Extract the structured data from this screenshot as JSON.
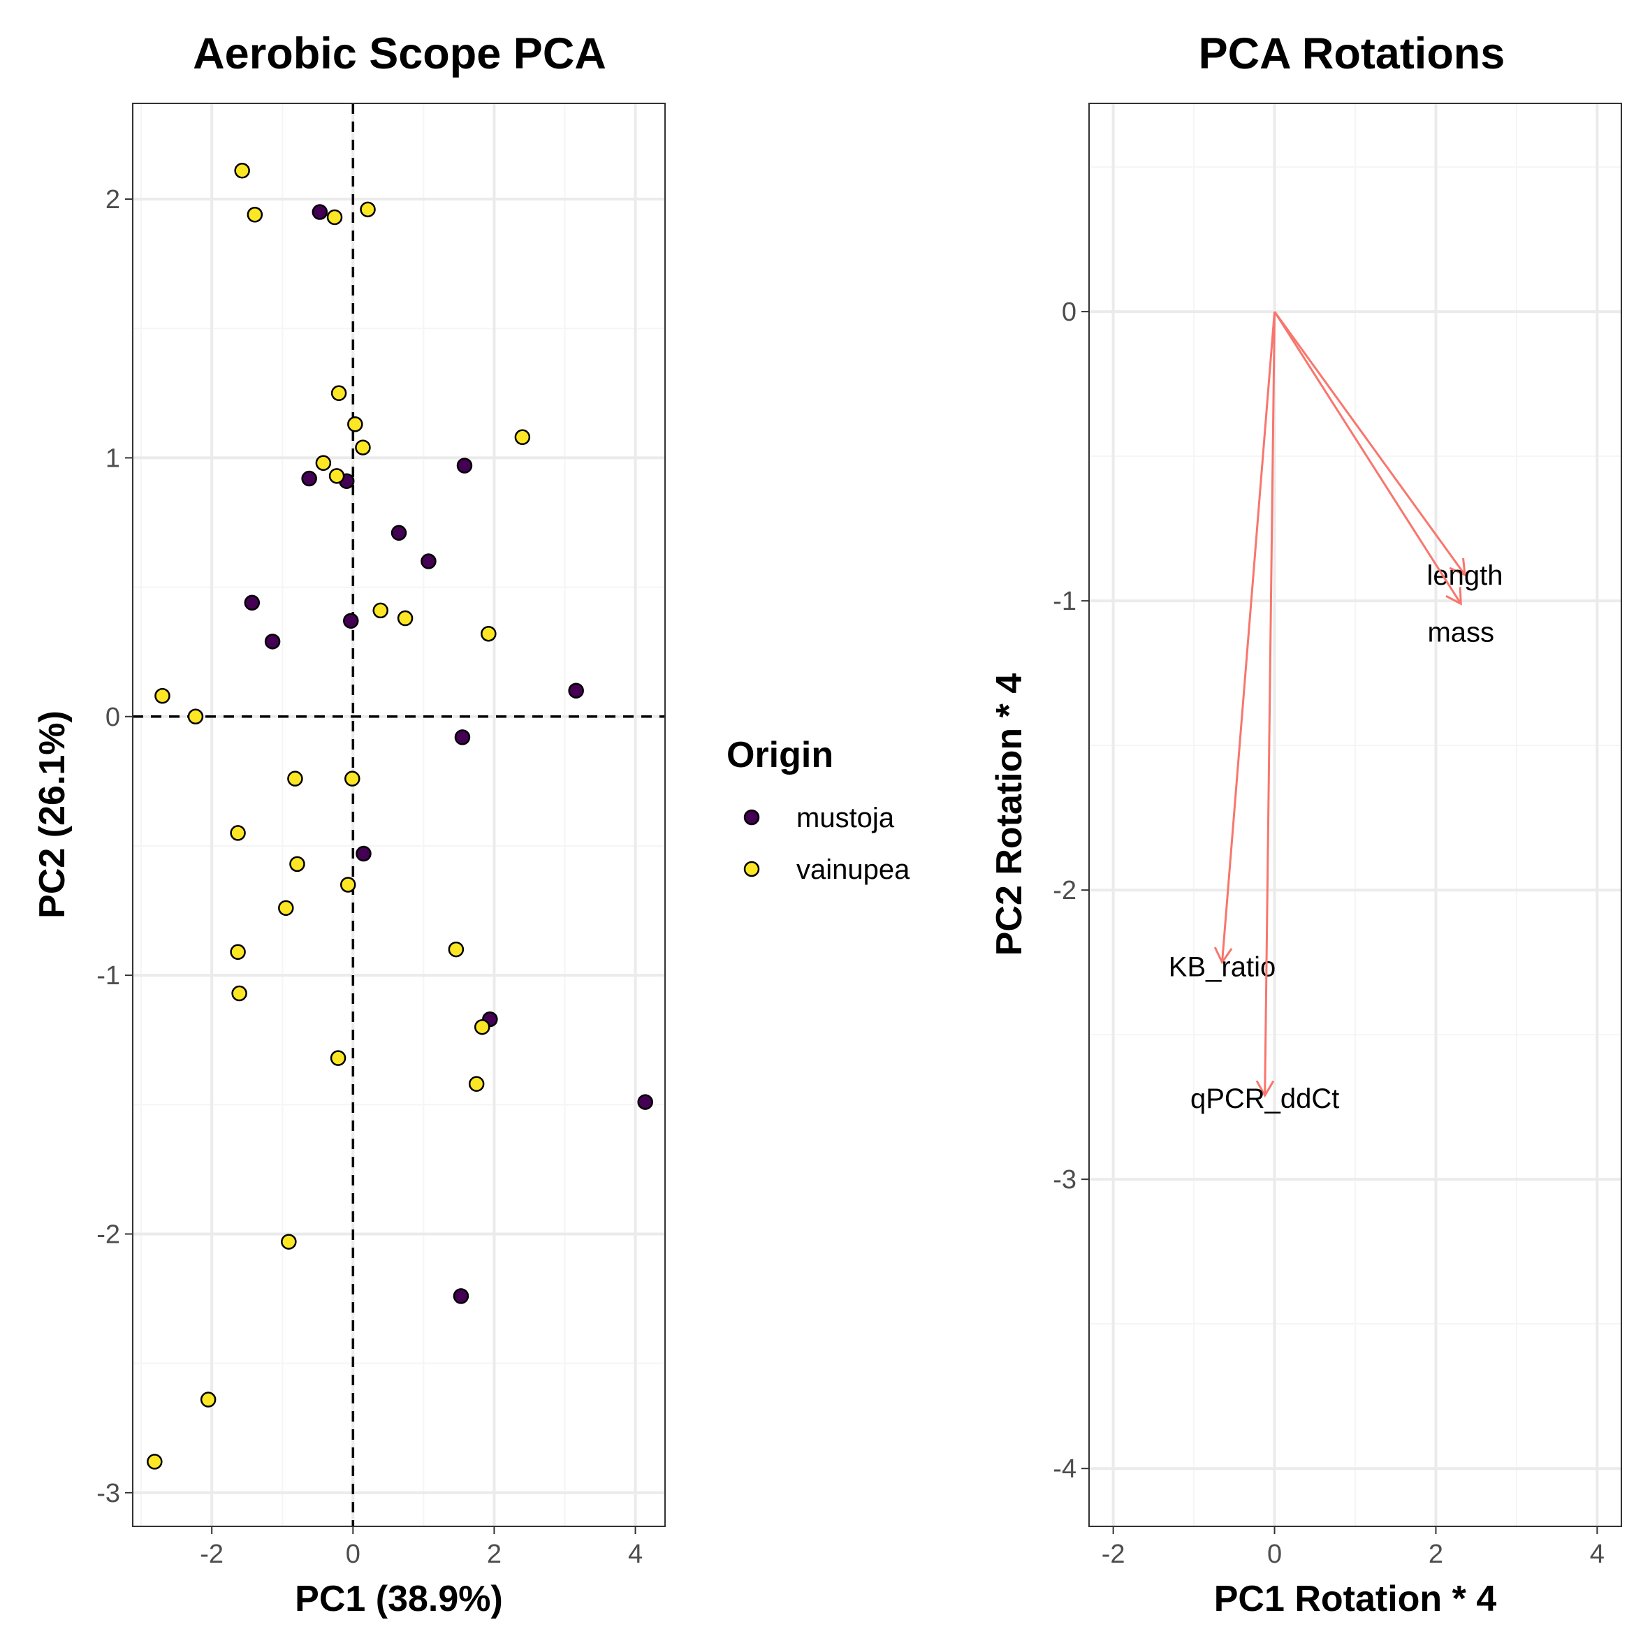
{
  "colors": {
    "mustoja": "#440154",
    "vainupea": "#FDE725",
    "arrow": "#F8766D",
    "major_grid": "#ebebeb",
    "minor_grid": "#f5f5f5",
    "panel_border": "#333333"
  },
  "legend": {
    "title": "Origin",
    "items": [
      {
        "label": "mustoja",
        "color": "#440154"
      },
      {
        "label": "vainupea",
        "color": "#FDE725"
      }
    ],
    "placement": "right of left panel"
  },
  "chart_data": [
    {
      "type": "scatter",
      "title": "Aerobic Scope PCA",
      "xlabel": "PC1 (38.9%)",
      "ylabel": "PC2 (26.1%)",
      "xlim": [
        -3.12,
        4.42
      ],
      "ylim": [
        -3.13,
        2.37
      ],
      "xticks": [
        -2,
        0,
        2,
        4
      ],
      "xtick_labels": [
        "-2",
        "0",
        "2",
        "4"
      ],
      "yticks": [
        -3,
        -2,
        -1,
        0,
        1,
        2
      ],
      "ytick_labels": [
        "-3",
        "-2",
        "-1",
        "0",
        "1",
        "2"
      ],
      "grid": true,
      "reference_lines": {
        "x": 0,
        "y": 0,
        "style": "dashed"
      },
      "series": [
        {
          "name": "mustoja",
          "points": [
            [
              -0.47,
              1.95
            ],
            [
              -0.62,
              0.92
            ],
            [
              -0.09,
              0.91
            ],
            [
              0.65,
              0.71
            ],
            [
              1.07,
              0.6
            ],
            [
              1.58,
              0.97
            ],
            [
              -1.43,
              0.44
            ],
            [
              -1.14,
              0.29
            ],
            [
              -0.03,
              0.37
            ],
            [
              3.16,
              0.1
            ],
            [
              1.55,
              -0.08
            ],
            [
              0.15,
              -0.53
            ],
            [
              1.94,
              -1.17
            ],
            [
              4.14,
              -1.49
            ],
            [
              1.53,
              -2.24
            ]
          ]
        },
        {
          "name": "vainupea",
          "points": [
            [
              -1.57,
              2.11
            ],
            [
              -1.39,
              1.94
            ],
            [
              -0.26,
              1.93
            ],
            [
              0.21,
              1.96
            ],
            [
              -0.2,
              1.25
            ],
            [
              0.03,
              1.13
            ],
            [
              2.4,
              1.08
            ],
            [
              -0.42,
              0.98
            ],
            [
              -0.23,
              0.93
            ],
            [
              0.14,
              1.04
            ],
            [
              0.39,
              0.41
            ],
            [
              0.74,
              0.38
            ],
            [
              1.92,
              0.32
            ],
            [
              -2.7,
              0.08
            ],
            [
              -2.23,
              0.0
            ],
            [
              -0.82,
              -0.24
            ],
            [
              -0.01,
              -0.24
            ],
            [
              -1.63,
              -0.45
            ],
            [
              -0.79,
              -0.57
            ],
            [
              -0.07,
              -0.65
            ],
            [
              -0.95,
              -0.74
            ],
            [
              -1.63,
              -0.91
            ],
            [
              -1.61,
              -1.07
            ],
            [
              1.46,
              -0.9
            ],
            [
              1.83,
              -1.2
            ],
            [
              1.75,
              -1.42
            ],
            [
              -0.21,
              -1.32
            ],
            [
              -0.91,
              -2.03
            ],
            [
              -2.05,
              -2.64
            ],
            [
              -2.81,
              -2.88
            ]
          ]
        }
      ]
    },
    {
      "type": "vector",
      "title": "PCA Rotations",
      "xlabel": "PC1 Rotation * 4",
      "ylabel": "PC2 Rotation * 4",
      "xlim": [
        -2.3,
        4.3
      ],
      "ylim": [
        -4.2,
        0.72
      ],
      "xticks": [
        -2,
        0,
        2,
        4
      ],
      "xtick_labels": [
        "-2",
        "0",
        "2",
        "4"
      ],
      "yticks": [
        -4,
        -3,
        -2,
        -1,
        0
      ],
      "ytick_labels": [
        "-4",
        "-3",
        "-2",
        "-1",
        "0"
      ],
      "grid": true,
      "vectors": [
        {
          "label": "length",
          "x": 2.36,
          "y": -0.91,
          "label_x": 2.36,
          "label_y": -0.91
        },
        {
          "label": "mass",
          "x": 2.31,
          "y": -1.01,
          "label_x": 2.31,
          "label_y": -1.01
        },
        {
          "label": "KB_ratio",
          "x": -0.65,
          "y": -2.25,
          "label_x": -0.65,
          "label_y": -2.25
        },
        {
          "label": "qPCR_ddCt",
          "x": -0.12,
          "y": -2.71,
          "label_x": -0.12,
          "label_y": -2.71
        }
      ]
    }
  ]
}
